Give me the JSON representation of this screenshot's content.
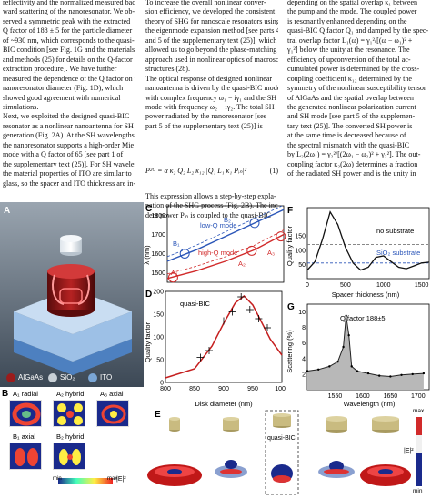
{
  "text": {
    "col1": [
      "reflectivity and the normalized measured back-",
      "ward scattering of the nanoresonator. We ob-",
      "served a symmetric peak with the extracted",
      "Q factor of 188 ± 5 for the particle diameter",
      "of ~930 nm, which corresponds to the quasi-",
      "BIC condition [see Fig. 1G and the materials",
      "and methods (25) for details on the Q-factor",
      "extraction procedure]. We have further",
      "measured the dependence of the Q factor on the",
      "nanoresonator diameter (Fig. 1D), which",
      "showed good agreement with numerical",
      "simulations.",
      "   Next, we exploited the designed quasi-BIC",
      "resonator as a nonlinear nanoantenna for SH",
      "generation (Fig. 2A). At the SH wavelengths,",
      "the nanoresonator supports a high-order Mie",
      "mode with a Q factor of 65 [see part 1 of",
      "the supplementary text (25)]. For SH wavelength,",
      "the material properties of ITO are similar to",
      "glass, so the spacer and ITO thickness are in-"
    ],
    "col2": [
      "To increase the overall nonlinear conver-",
      "sion efficiency, we developed the consistent",
      "theory of SHG for nanoscale resonators using",
      "the eigenmode expansion method [see parts 4",
      "and 5 of the supplementary text (25)], which",
      "allowed us to go beyond the phase-matching",
      "approach used in nonlinear optics of macroscopic",
      "structures (28).",
      "   The optical response of designed nonlinear",
      "nanoantenna is driven by the quasi-BIC mode",
      "with complex frequency ω₁ − iγ₁ and the SH Mie",
      "mode with frequency ω₂ − iγ₂. The total SH",
      "power radiated by the nanoresonator [see",
      "part 5 of the supplementary text (25)] is"
    ],
    "col2b": [
      "This expression allows a step-by-step expla-",
      "nation of the SHG process (Fig. 2B). The inci-",
      "dent power Pᵢₙ is coupled to the quasi-BIC"
    ],
    "col3": [
      "depending on the spatial overlap κ₁ between",
      "the pump and the mode. The coupled power",
      "is resonantly enhanced depending on the",
      "quasi-BIC Q factor Q₁ and damped by the spec-",
      "tral overlap factor L₁(ω) = γ₁²/[(ω − ω₁)² +",
      "γ₁²] below the unity at the resonance. The",
      "efficiency of upconversion of the total ac-",
      "cumulated power is determined by the cross-",
      "coupling coefficient κ₁₂ determined by the",
      "symmetry of the nonlinear susceptibility tensor",
      "of AlGaAs and the spatial overlap between",
      "the generated nonlinear polarization current",
      "and SH mode [see part 5 of the supplemen-",
      "tary text (25)]. The converted SH power is",
      "at the same time is decreased because of",
      "the spectral mismatch with the quasi-BIC",
      "by L₂(2ω₁) = γ₂²/[(2ω₁ − ω₂)² + γ₂²]. The out-",
      "coupling factor κ₂(2ω) determines a fraction",
      "of the radiated SH power and is the unity in"
    ],
    "equation": "P²ᴼ = α κ₂ Q₂ L₂ κ₁₂ |Q₁ L₁ κ₁ Pᵢₙ|²",
    "equation_number": "(1)"
  },
  "panelA": {
    "label": "A",
    "legend": [
      "AlGaAs",
      "SiO₂",
      "ITO"
    ],
    "colors": {
      "algaas": "#9b1c1c",
      "sio2": "#c9d0d6",
      "ito": "#7aa6d6"
    }
  },
  "panelB": {
    "label": "B",
    "modes_row1": [
      "A₁ radial",
      "A₂ hybrid",
      "A₃ axial"
    ],
    "modes_row2": [
      "B₁ axial",
      "B₂ hybrid"
    ],
    "colorbar": {
      "min": "min",
      "max": "max",
      "quantity": "|E|²"
    }
  },
  "panelC": {
    "label": "C",
    "ylabel": "λ (nm)",
    "yticks": [
      "1800",
      "1700",
      "1600",
      "1500"
    ],
    "annotations": [
      "low-Q mode",
      "high-Q mode",
      "B₁",
      "B₂",
      "A₁",
      "A₂",
      "A₃"
    ]
  },
  "panelD": {
    "label": "D",
    "title": "quasi-BIC",
    "ylabel": "Quality factor",
    "xlabel": "Disk diameter (nm)",
    "yticks": [
      "0",
      "50",
      "100",
      "150",
      "200"
    ],
    "xticks": [
      "800",
      "850",
      "900",
      "950",
      "1000"
    ]
  },
  "panelF": {
    "label": "F",
    "ylabel": "Quality factor",
    "xlabel": "Spacer thickness (nm)",
    "yticks": [
      "150",
      "100",
      "50"
    ],
    "xticks": [
      "0",
      "500",
      "1000",
      "1500"
    ],
    "annotations": [
      "no substrate",
      "SiO₂ substrate"
    ]
  },
  "panelG": {
    "label": "G",
    "annotation": "Q factor 188±5",
    "ylabel": "Scattering (%)",
    "xlabel": "Wavelength (nm)",
    "yticks": [
      "2",
      "4",
      "6",
      "8",
      "10"
    ],
    "xticks": [
      "1550",
      "1600",
      "1650",
      "1700"
    ]
  },
  "panelE": {
    "label": "E",
    "inset_label": "quasi-BIC",
    "colorbar": {
      "max": "max",
      "min": "min",
      "quantity": "|E|²"
    }
  },
  "chart_data": [
    {
      "type": "line",
      "panel": "C",
      "ylabel": "λ (nm)",
      "ylim": [
        1450,
        1850
      ],
      "x": [
        700,
        800,
        900,
        1000,
        1100
      ],
      "series": [
        {
          "name": "low-Q mode",
          "values": [
            1560,
            1620,
            1690,
            1760,
            1830
          ]
        },
        {
          "name": "high-Q mode",
          "values": [
            1470,
            1510,
            1560,
            1620,
            1700
          ]
        }
      ],
      "color_low": "#2a55b8",
      "color_high": "#d12a2a"
    },
    {
      "type": "scatter",
      "panel": "D",
      "title": "quasi-BIC",
      "xlabel": "Disk diameter (nm)",
      "ylabel": "Quality factor",
      "xlim": [
        800,
        1000
      ],
      "ylim": [
        0,
        200
      ],
      "x": [
        860,
        875,
        900,
        915,
        930,
        945,
        960,
        975
      ],
      "values": [
        55,
        70,
        135,
        155,
        188,
        160,
        140,
        120
      ],
      "fit_x": [
        800,
        850,
        880,
        900,
        920,
        935,
        950,
        980,
        1000
      ],
      "fit_y": [
        10,
        30,
        80,
        130,
        175,
        190,
        170,
        95,
        60
      ],
      "color": "#c51f1f"
    },
    {
      "type": "line",
      "panel": "F",
      "xlabel": "Spacer thickness (nm)",
      "ylabel": "Quality factor",
      "xlim": [
        0,
        1600
      ],
      "ylim": [
        0,
        250
      ],
      "series": [
        {
          "name": "no substrate",
          "x": [
            0,
            1600
          ],
          "values": [
            120,
            120
          ]
        },
        {
          "name": "SiO₂ substrate",
          "x": [
            0,
            1600
          ],
          "values": [
            55,
            55
          ]
        },
        {
          "name": "",
          "x": [
            0,
            100,
            200,
            300,
            400,
            500,
            600,
            700,
            800,
            900,
            1000,
            1100,
            1200,
            1300,
            1400,
            1500,
            1600
          ],
          "values": [
            30,
            60,
            140,
            235,
            190,
            110,
            55,
            30,
            40,
            75,
            80,
            60,
            40,
            35,
            45,
            55,
            58
          ]
        }
      ]
    },
    {
      "type": "area",
      "panel": "G",
      "xlabel": "Wavelength (nm)",
      "ylabel": "Scattering (%)",
      "xlim": [
        1500,
        1720
      ],
      "ylim": [
        0,
        11
      ],
      "x": [
        1500,
        1520,
        1540,
        1555,
        1565,
        1570,
        1575,
        1580,
        1590,
        1610,
        1630,
        1650,
        1670,
        1690,
        1710
      ],
      "values": [
        2.4,
        2.6,
        3.0,
        3.6,
        5.5,
        9.5,
        7.0,
        3.0,
        2.4,
        2.1,
        1.8,
        1.7,
        1.9,
        2.0,
        2.1
      ]
    }
  ]
}
